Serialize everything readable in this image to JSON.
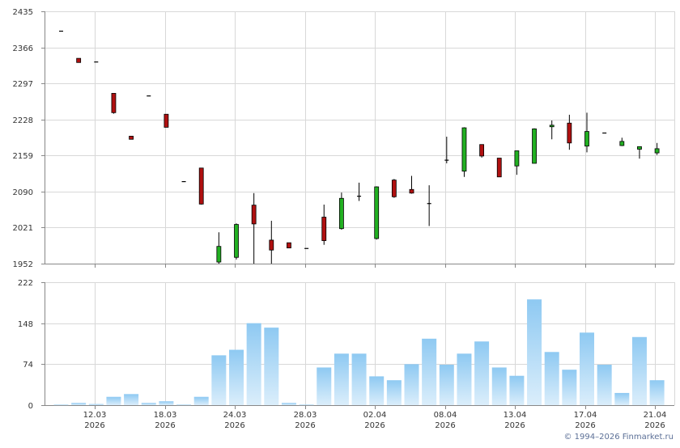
{
  "colors": {
    "up": "#22b022",
    "down": "#b01010",
    "volume_bar": "#8ec9f2",
    "grid": "#d8d8d8",
    "axis": "#888888",
    "credit": "#5b6f96"
  },
  "credit": "© 1994–2026 Finmarket.ru",
  "chart_data": [
    {
      "type": "candlestick",
      "title": "",
      "ylim": [
        1952,
        2435
      ],
      "y_ticks": [
        "1952",
        "2021",
        "2090",
        "2159",
        "2228",
        "2297",
        "2366",
        "2435"
      ],
      "grid": true,
      "candles": [
        {
          "o": 2397,
          "h": 2397,
          "l": 2397,
          "c": 2397
        },
        {
          "o": 2345,
          "h": 2345,
          "l": 2337,
          "c": 2337
        },
        {
          "o": 2338,
          "h": 2338,
          "l": 2338,
          "c": 2338
        },
        {
          "o": 2278,
          "h": 2278,
          "l": 2239,
          "c": 2241
        },
        {
          "o": 2196,
          "h": 2196,
          "l": 2190,
          "c": 2190
        },
        {
          "o": 2273,
          "h": 2273,
          "l": 2273,
          "c": 2273
        },
        {
          "o": 2238,
          "h": 2238,
          "l": 2213,
          "c": 2213
        },
        {
          "o": 2109,
          "h": 2109,
          "l": 2109,
          "c": 2109
        },
        {
          "o": 2135,
          "h": 2135,
          "l": 2065,
          "c": 2066
        },
        {
          "o": 1955,
          "h": 2012,
          "l": 1945,
          "c": 1985
        },
        {
          "o": 1964,
          "h": 2029,
          "l": 1960,
          "c": 2027
        },
        {
          "o": 2064,
          "h": 2087,
          "l": 1952,
          "c": 2028
        },
        {
          "o": 1997,
          "h": 2034,
          "l": 1952,
          "c": 1978
        },
        {
          "o": 1992,
          "h": 1992,
          "l": 1982,
          "c": 1982
        },
        {
          "o": 1981,
          "h": 1981,
          "l": 1981,
          "c": 1981
        },
        {
          "o": 2041,
          "h": 2065,
          "l": 1988,
          "c": 1996
        },
        {
          "o": 2019,
          "h": 2088,
          "l": 2017,
          "c": 2077
        },
        {
          "o": 2079,
          "h": 2107,
          "l": 2072,
          "c": 2081
        },
        {
          "o": 2000,
          "h": 2100,
          "l": 1998,
          "c": 2099
        },
        {
          "o": 2112,
          "h": 2114,
          "l": 2078,
          "c": 2080
        },
        {
          "o": 2094,
          "h": 2120,
          "l": 2086,
          "c": 2087
        },
        {
          "o": 2067,
          "h": 2102,
          "l": 2024,
          "c": 2065
        },
        {
          "o": 2150,
          "h": 2195,
          "l": 2144,
          "c": 2150
        },
        {
          "o": 2129,
          "h": 2213,
          "l": 2118,
          "c": 2212
        },
        {
          "o": 2180,
          "h": 2180,
          "l": 2155,
          "c": 2158
        },
        {
          "o": 2154,
          "h": 2154,
          "l": 2118,
          "c": 2118
        },
        {
          "o": 2139,
          "h": 2168,
          "l": 2122,
          "c": 2168
        },
        {
          "o": 2144,
          "h": 2211,
          "l": 2144,
          "c": 2210
        },
        {
          "o": 2214,
          "h": 2226,
          "l": 2190,
          "c": 2217
        },
        {
          "o": 2221,
          "h": 2237,
          "l": 2170,
          "c": 2183
        },
        {
          "o": 2177,
          "h": 2241,
          "l": 2165,
          "c": 2205
        },
        {
          "o": 2202,
          "h": 2202,
          "l": 2202,
          "c": 2202
        },
        {
          "o": 2178,
          "h": 2193,
          "l": 2177,
          "c": 2186
        },
        {
          "o": 2171,
          "h": 2176,
          "l": 2153,
          "c": 2176
        },
        {
          "o": 2164,
          "h": 2183,
          "l": 2160,
          "c": 2172
        }
      ]
    },
    {
      "type": "bar",
      "title": "",
      "ylim": [
        0,
        222
      ],
      "y_ticks": [
        "0",
        "74",
        "148",
        "222"
      ],
      "grid": true,
      "values": [
        1,
        4,
        2,
        15,
        20,
        4,
        7,
        1,
        15,
        90,
        100,
        148,
        140,
        4,
        1,
        68,
        93,
        93,
        52,
        45,
        74,
        120,
        73,
        93,
        115,
        68,
        53,
        191,
        96,
        64,
        131,
        73,
        22,
        123,
        45
      ]
    }
  ],
  "x_axis": {
    "ticks": [
      {
        "date": "12.03",
        "year": "2026"
      },
      {
        "date": "18.03",
        "year": "2026"
      },
      {
        "date": "24.03",
        "year": "2026"
      },
      {
        "date": "28.03",
        "year": "2026"
      },
      {
        "date": "02.04",
        "year": "2026"
      },
      {
        "date": "08.04",
        "year": "2026"
      },
      {
        "date": "13.04",
        "year": "2026"
      },
      {
        "date": "17.04",
        "year": "2026"
      },
      {
        "date": "21.04",
        "year": "2026"
      }
    ]
  }
}
